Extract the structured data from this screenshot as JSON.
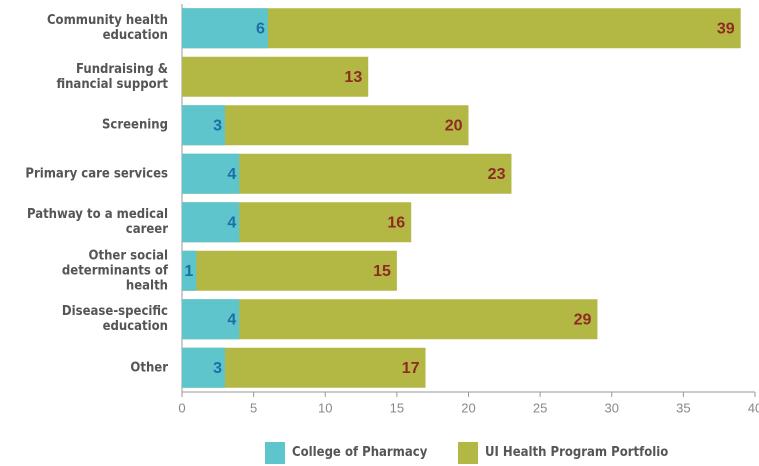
{
  "chart_data": {
    "type": "bar",
    "overlay": true,
    "categories": [
      "Community health education",
      "Fundraising & financial support",
      "Screening",
      "Primary care services",
      "Pathway to a medical career",
      "Other social determinants of health",
      "Disease-specific education",
      "Other"
    ],
    "series": [
      {
        "name": "UI Health Program Portfolio",
        "color": "#b3b845",
        "label_color": "#8e2a22",
        "values": [
          39,
          13,
          20,
          23,
          16,
          15,
          29,
          17
        ]
      },
      {
        "name": "College of Pharmacy",
        "color": "#5ec5cc",
        "label_color": "#1e6ea6",
        "values": [
          6,
          null,
          3,
          4,
          4,
          1,
          4,
          3
        ]
      }
    ],
    "legend_order": [
      1,
      0
    ],
    "xlim": [
      0,
      40
    ],
    "xticks": [
      0,
      5,
      10,
      15,
      20,
      25,
      30,
      35,
      40
    ]
  }
}
